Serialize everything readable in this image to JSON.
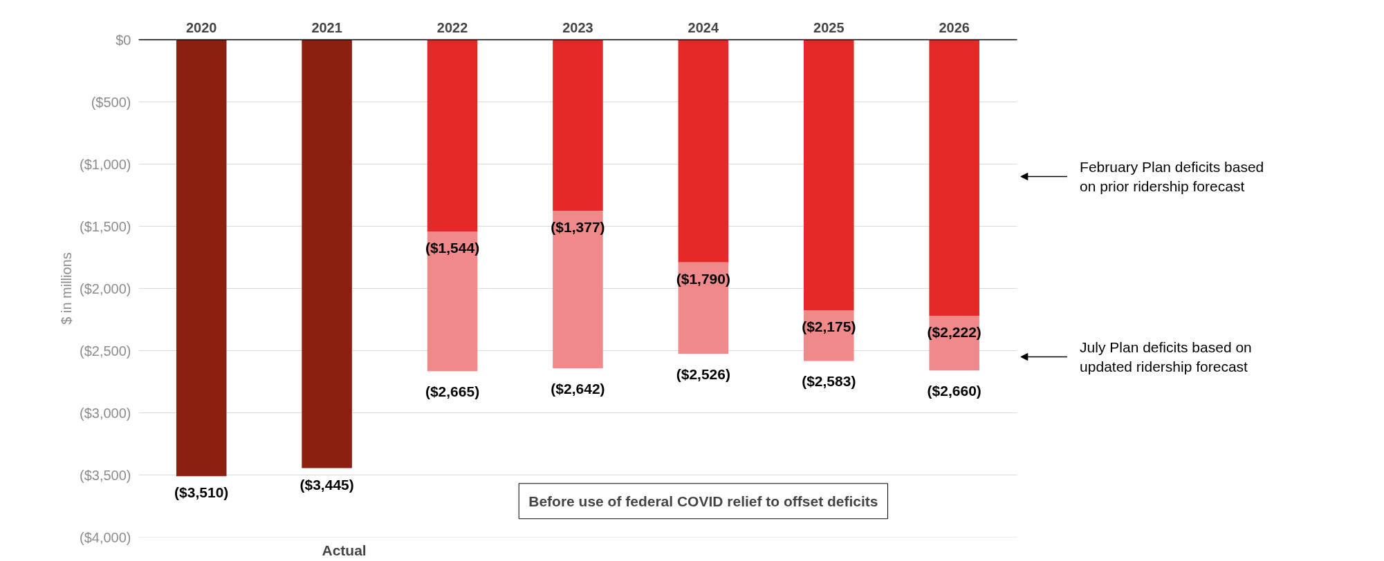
{
  "chart_data": {
    "type": "bar",
    "stacked": true,
    "totals": [
      null,
      null,
      "($2,665)",
      "($2,642)",
      "($2,526)",
      "($2,583)",
      "($2,660)"
    ],
    "categories": [
      "2020",
      "2021",
      "2022",
      "2023",
      "2024",
      "2025",
      "2026"
    ],
    "series": [
      {
        "color": "#8b1f10",
        "values": [
          -3510,
          -3445,
          null,
          null,
          null,
          null,
          null
        ],
        "value_labels": [
          "($3,510)",
          "($3,445)",
          null,
          null,
          null,
          null,
          null
        ]
      },
      {
        "color": "#e52828",
        "values": [
          null,
          null,
          -1544,
          -1377,
          -1790,
          -2175,
          -2222
        ],
        "value_labels": [
          null,
          null,
          "($1,544)",
          "($1,377)",
          "($1,790)",
          "($2,175)",
          "($2,222)"
        ]
      },
      {
        "color": "#f08a8a",
        "values": [
          null,
          null,
          -1121,
          -1265,
          -736,
          -408,
          -438
        ]
      }
    ],
    "ylabel": "$ in millions",
    "ylim": [
      -4000,
      0
    ],
    "yticks": [
      {
        "value": 0,
        "label": "$0"
      },
      {
        "value": -500,
        "label": "($500)"
      },
      {
        "value": -1000,
        "label": "($1,000)"
      },
      {
        "value": -1500,
        "label": "($1,500)"
      },
      {
        "value": -2000,
        "label": "($2,000)"
      },
      {
        "value": -2500,
        "label": "($2,500)"
      },
      {
        "value": -3000,
        "label": "($3,000)"
      },
      {
        "value": -3500,
        "label": "($3,500)"
      },
      {
        "value": -4000,
        "label": "($4,000)"
      }
    ],
    "grid": "y",
    "annotations": [
      "February Plan deficits based\non prior ridership forecast",
      "July Plan deficits based on\nupdated ridership forecast",
      "Before use of federal COVID relief to offset deficits",
      "Actual"
    ]
  }
}
